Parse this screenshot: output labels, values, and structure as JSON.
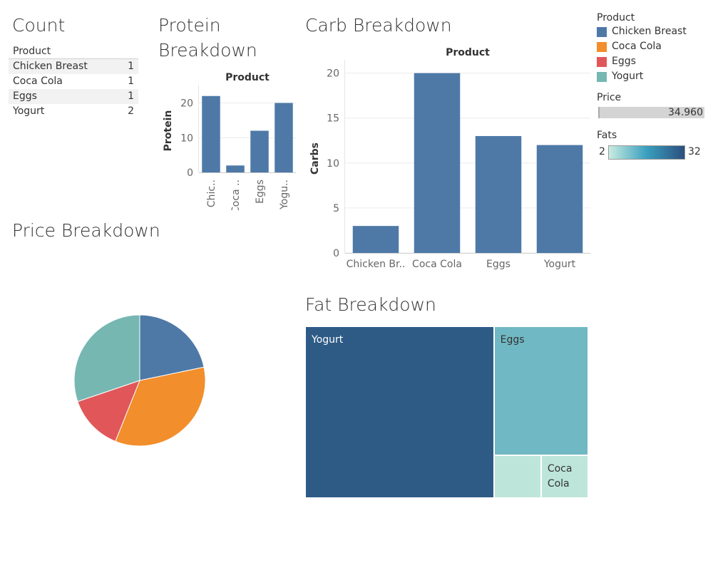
{
  "titles": {
    "count": "Count",
    "protein_line1": "Protein",
    "protein_line2": "Breakdown",
    "carb": "Carb Breakdown",
    "price": "Price Breakdown",
    "fat": "Fat Breakdown"
  },
  "count_table": {
    "header": "Product",
    "rows": [
      {
        "product": "Chicken Breast",
        "count": "1"
      },
      {
        "product": "Coca Cola",
        "count": "1"
      },
      {
        "product": "Eggs",
        "count": "1"
      },
      {
        "product": "Yogurt",
        "count": "2"
      }
    ]
  },
  "legend": {
    "product_title": "Product",
    "items": [
      {
        "label": "Chicken Breast",
        "color": "#4e79a7"
      },
      {
        "label": "Coca Cola",
        "color": "#f28e2b"
      },
      {
        "label": "Eggs",
        "color": "#e15759"
      },
      {
        "label": "Yogurt",
        "color": "#76b7b2"
      }
    ],
    "price_title": "Price",
    "price_value": "34.960",
    "fats_title": "Fats",
    "fats_min": "2",
    "fats_max": "32"
  },
  "chart_data": [
    {
      "id": "protein",
      "type": "bar",
      "header": "Product",
      "ylabel": "Protein",
      "categories": [
        "Chicken Breast",
        "Coca Cola",
        "Eggs",
        "Yogurt"
      ],
      "tick_labels": [
        "Chic..",
        "Coca ..",
        "Eggs",
        "Yogu.."
      ],
      "values": [
        22,
        2,
        12,
        20
      ],
      "yticks": [
        0,
        10,
        20
      ],
      "ylim": [
        0,
        24
      ],
      "color": "#4e79a7"
    },
    {
      "id": "carb",
      "type": "bar",
      "header": "Product",
      "ylabel": "Carbs",
      "categories": [
        "Chicken Breast",
        "Coca Cola",
        "Eggs",
        "Yogurt"
      ],
      "tick_labels": [
        "Chicken Br..",
        "Coca Cola",
        "Eggs",
        "Yogurt"
      ],
      "values": [
        3,
        20,
        13,
        12
      ],
      "yticks": [
        0,
        5,
        10,
        15,
        20
      ],
      "ylim": [
        0,
        21
      ],
      "color": "#4e79a7"
    },
    {
      "id": "price",
      "type": "pie",
      "categories": [
        "Chicken Breast",
        "Coca Cola",
        "Eggs",
        "Yogurt"
      ],
      "values": [
        7.6,
        12.0,
        4.8,
        10.56
      ],
      "colors": [
        "#4e79a7",
        "#f28e2b",
        "#e15759",
        "#76b7b2"
      ]
    },
    {
      "id": "fat",
      "type": "treemap",
      "categories": [
        "Yogurt",
        "Eggs",
        "Chicken Breast",
        "Coca Cola"
      ],
      "values": [
        32,
        12,
        2,
        2
      ],
      "labels": [
        "Yogurt",
        "Eggs",
        "",
        "Coca Cola"
      ],
      "colors": [
        "#2e5b86",
        "#70b8c3",
        "#bde5da",
        "#bde5da"
      ],
      "label_colors": [
        "#ffffff",
        "#333333",
        "#333333",
        "#333333"
      ]
    }
  ]
}
